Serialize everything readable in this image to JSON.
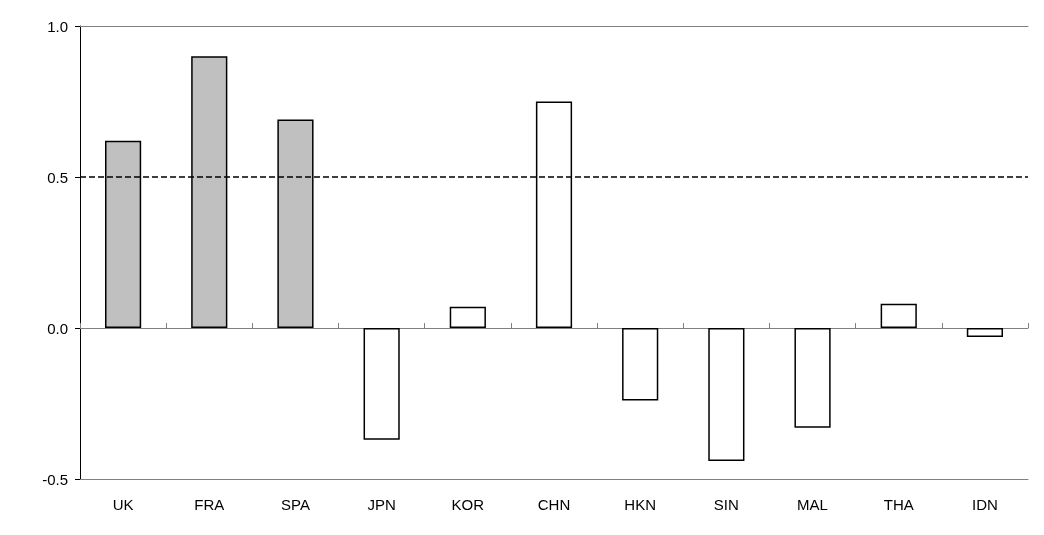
{
  "chart_data": {
    "type": "bar",
    "categories": [
      "UK",
      "FRA",
      "SPA",
      "JPN",
      "KOR",
      "CHN",
      "HKN",
      "SIN",
      "MAL",
      "THA",
      "IDN"
    ],
    "values": [
      0.62,
      0.9,
      0.69,
      -0.37,
      0.07,
      0.75,
      -0.24,
      -0.44,
      -0.33,
      0.08,
      -0.03
    ],
    "colors": [
      "#c0c0c0",
      "#c0c0c0",
      "#c0c0c0",
      "#ffffff",
      "#ffffff",
      "#ffffff",
      "#ffffff",
      "#ffffff",
      "#ffffff",
      "#ffffff",
      "#ffffff"
    ],
    "ylim": [
      -0.5,
      1.0
    ],
    "yticks": [
      {
        "value": -0.5,
        "label": "-0.5"
      },
      {
        "value": 0,
        "label": "0.0"
      },
      {
        "value": 0.5,
        "label": "0.5"
      },
      {
        "value": 1,
        "label": "1.0"
      }
    ],
    "ref_lines": [
      {
        "axis": "y",
        "value": 0.5,
        "label": null,
        "color": "#000000",
        "line_style": "dashed"
      }
    ],
    "grid": false
  }
}
